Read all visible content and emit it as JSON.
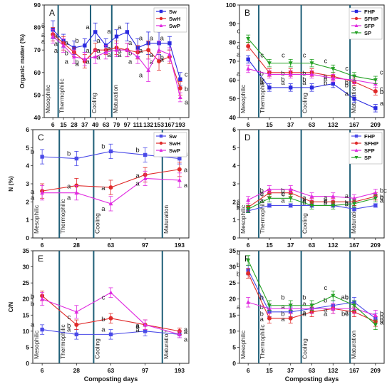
{
  "chart_data": [
    {
      "panel": "A",
      "type": "line",
      "ylabel": "Organic matter (%)",
      "xlabel": "",
      "ylim": [
        40,
        90
      ],
      "yticks": [
        40,
        50,
        60,
        70,
        80,
        90
      ],
      "x": [
        "6",
        "15",
        "28",
        "37",
        "49",
        "63",
        "79",
        "97",
        "111",
        "132",
        "153",
        "167",
        "193"
      ],
      "phases": [
        {
          "label": "Mesophilic",
          "before": 1,
          "line": 1.5
        },
        {
          "label": "Thermophilic",
          "before": 4,
          "line": 4.55
        },
        {
          "label": "Cooling",
          "before": 6,
          "line": 6.55
        },
        {
          "label": "Maturation",
          "before": 13,
          "line": null
        }
      ],
      "legend": "top-right",
      "series": [
        {
          "name": "Sw",
          "color": "#2a2ae0",
          "marker": "square",
          "values": [
            79,
            74,
            71,
            72,
            78,
            72,
            76,
            78,
            71,
            73,
            73,
            73,
            57
          ],
          "err": [
            4,
            3,
            3,
            3,
            4,
            3,
            3,
            4,
            4,
            5,
            5,
            3,
            3
          ],
          "labels": [
            "a",
            "a",
            "a",
            "b",
            "a",
            "a",
            "a",
            "a",
            "a",
            "a",
            "a",
            "a",
            "c"
          ]
        },
        {
          "name": "SwH",
          "color": "#e02a2a",
          "marker": "circle",
          "values": [
            77,
            73,
            69,
            65,
            70,
            70,
            71,
            70,
            69,
            70,
            65,
            67,
            53
          ],
          "err": [
            3,
            3,
            2,
            3,
            3,
            2,
            3,
            3,
            3,
            4,
            4,
            3,
            3
          ],
          "labels": [
            "a",
            "a",
            "b",
            "b",
            "a",
            "a",
            "a",
            "a",
            "b",
            "a",
            "a",
            "b",
            "b"
          ]
        },
        {
          "name": "SwP",
          "color": "#e02ae0",
          "marker": "triangle",
          "values": [
            76,
            72,
            67,
            66,
            67,
            69,
            70,
            70,
            67,
            61,
            70,
            68,
            49
          ],
          "err": [
            3,
            3,
            3,
            3,
            3,
            3,
            3,
            3,
            3,
            5,
            4,
            3,
            2
          ],
          "labels": [
            "a",
            "a",
            "a",
            "a",
            "a",
            "a",
            "a",
            "a",
            "a",
            "a",
            "a",
            "a",
            "a"
          ]
        }
      ]
    },
    {
      "panel": "B",
      "type": "line",
      "ylabel": "",
      "xlabel": "",
      "ylim": [
        40,
        100
      ],
      "yticks": [
        40,
        50,
        60,
        70,
        80,
        90,
        100
      ],
      "x": [
        "6",
        "15",
        "37",
        "63",
        "132",
        "167",
        "209"
      ],
      "phases": [
        {
          "label": "Mesophilic",
          "before": 1,
          "line": 1.5
        },
        {
          "label": "Thermophilic",
          "before": 3,
          "line": 3.5
        },
        {
          "label": "Cooling",
          "before": 5,
          "line": 5.8
        },
        {
          "label": "Maturation",
          "before": 7,
          "line": null
        }
      ],
      "legend": "top-right",
      "series": [
        {
          "name": "FHP",
          "color": "#2a2ae0",
          "marker": "square",
          "values": [
            71,
            56,
            56,
            56,
            58,
            50,
            45
          ],
          "err": [
            2,
            2,
            2,
            2,
            2,
            2,
            2
          ],
          "labels": [
            "a",
            "a",
            "a",
            "a",
            "a",
            "a",
            "a"
          ]
        },
        {
          "name": "SFHP",
          "color": "#e02a2a",
          "marker": "circle",
          "values": [
            78,
            64,
            64,
            64,
            62,
            59,
            54
          ],
          "err": [
            2,
            2,
            2,
            2,
            2,
            2,
            2
          ],
          "labels": [
            "c",
            "b",
            "b",
            "b",
            "b",
            "b",
            "b"
          ]
        },
        {
          "name": "SFP",
          "color": "#e02ae0",
          "marker": "triangle",
          "values": [
            66,
            63,
            63,
            63,
            61,
            60,
            58
          ],
          "err": [
            2,
            2,
            2,
            2,
            2,
            2,
            2
          ],
          "labels": [
            "a",
            "b",
            "b",
            "b",
            "b",
            "b",
            "c"
          ]
        },
        {
          "name": "SP",
          "color": "#22a022",
          "marker": "triangle-down",
          "values": [
            82,
            69,
            69,
            69,
            66,
            62,
            60
          ],
          "err": [
            2,
            2,
            2,
            2,
            2,
            2,
            2
          ],
          "labels": [
            "c",
            "c",
            "c",
            "c",
            "c",
            "c",
            "c"
          ]
        }
      ]
    },
    {
      "panel": "C",
      "type": "line",
      "ylabel": "N (%)",
      "xlabel": "",
      "ylim": [
        0,
        6
      ],
      "yticks": [
        0,
        1,
        2,
        3,
        4,
        5,
        6
      ],
      "x": [
        "6",
        "28",
        "63",
        "97",
        "193"
      ],
      "phases": [
        {
          "label": "Mesophilic",
          "before": 1,
          "line": 1.5
        },
        {
          "label": "Thermophilic",
          "before": 2,
          "line": 2.5
        },
        {
          "label": "Cooling",
          "before": 3,
          "line": 4.5
        },
        {
          "label": "Maturation",
          "before": 5,
          "line": null
        }
      ],
      "legend": "top-right",
      "series": [
        {
          "name": "Sw",
          "color": "#4a4ae8",
          "marker": "square",
          "values": [
            4.5,
            4.4,
            4.8,
            4.6,
            4.4
          ],
          "err": [
            0.4,
            0.4,
            0.4,
            0.4,
            0.3
          ],
          "labels": [
            "b",
            "b",
            "b",
            "b",
            "a"
          ]
        },
        {
          "name": "SwH",
          "color": "#e02a2a",
          "marker": "circle",
          "values": [
            2.6,
            2.9,
            2.8,
            3.5,
            3.8
          ],
          "err": [
            0.4,
            0.4,
            0.4,
            0.4,
            0.4
          ],
          "labels": [
            "a",
            "a",
            "a",
            "a",
            "a"
          ]
        },
        {
          "name": "SwP",
          "color": "#e02ae0",
          "marker": "triangle",
          "values": [
            2.5,
            2.5,
            1.9,
            3.3,
            3.2
          ],
          "err": [
            0.4,
            0.4,
            0.4,
            0.4,
            0.4
          ],
          "labels": [
            "a",
            "a",
            "a",
            "a",
            "a"
          ]
        }
      ]
    },
    {
      "panel": "D",
      "type": "line",
      "ylabel": "",
      "xlabel": "",
      "ylim": [
        0,
        6
      ],
      "yticks": [
        0,
        1,
        2,
        3,
        4,
        5,
        6
      ],
      "x": [
        "6",
        "15",
        "37",
        "63",
        "132",
        "167",
        "209"
      ],
      "phases": [
        {
          "label": "Mesophilic",
          "before": 1,
          "line": 1.5
        },
        {
          "label": "Thermophilic",
          "before": 3,
          "line": 3.5
        },
        {
          "label": "Cooling",
          "before": 5,
          "line": 5.8
        },
        {
          "label": "Maturation",
          "before": 7,
          "line": null
        }
      ],
      "legend": "top-right",
      "series": [
        {
          "name": "FHP",
          "color": "#4a4ae8",
          "marker": "square",
          "values": [
            1.5,
            1.8,
            1.8,
            1.8,
            1.8,
            1.6,
            1.8
          ],
          "err": [
            0.1,
            0.1,
            0.1,
            0.1,
            0.1,
            0.1,
            0.1
          ],
          "labels": [
            "a",
            "a",
            "a",
            "a",
            "a",
            "a",
            "a"
          ]
        },
        {
          "name": "SFHP",
          "color": "#e02a2a",
          "marker": "circle",
          "values": [
            1.7,
            2.5,
            2.5,
            2.0,
            2.0,
            2.0,
            2.3
          ],
          "err": [
            0.2,
            0.2,
            0.2,
            0.2,
            0.2,
            0.2,
            0.2
          ],
          "labels": [
            "a",
            "b",
            "b",
            "b",
            "b",
            "b",
            "b"
          ]
        },
        {
          "name": "SFP",
          "color": "#e02ae0",
          "marker": "triangle",
          "values": [
            2.1,
            2.7,
            2.7,
            2.3,
            2.3,
            2.2,
            2.5
          ],
          "err": [
            0.2,
            0.2,
            0.2,
            0.2,
            0.2,
            0.2,
            0.2
          ],
          "labels": [
            "b",
            "c",
            "c",
            "c",
            "c",
            "b",
            "c"
          ]
        },
        {
          "name": "SP",
          "color": "#22a022",
          "marker": "triangle-down",
          "values": [
            1.6,
            2.2,
            2.2,
            1.8,
            1.8,
            1.9,
            2.2
          ],
          "err": [
            0.2,
            0.2,
            0.2,
            0.2,
            0.2,
            0.2,
            0.2
          ],
          "labels": [
            "a",
            "b",
            "b",
            "a",
            "a",
            "a",
            "bc"
          ]
        }
      ]
    },
    {
      "panel": "E",
      "type": "line",
      "ylabel": "C/N",
      "xlabel": "Composting days",
      "ylim": [
        0,
        35
      ],
      "yticks": [
        0,
        5,
        10,
        15,
        20,
        25,
        30,
        35
      ],
      "x": [
        "6",
        "28",
        "63",
        "97",
        "193"
      ],
      "phases": [
        {
          "label": "Mesophilic",
          "before": 1,
          "line": 1.5
        },
        {
          "label": "Thermophilic",
          "before": 2,
          "line": 2.5
        },
        {
          "label": "Cooling",
          "before": 3,
          "line": 4.5
        },
        {
          "label": "Maturation",
          "before": 5,
          "line": null
        }
      ],
      "legend": "",
      "series": [
        {
          "name": "",
          "color": "#4a4ae8",
          "marker": "square",
          "values": [
            10.5,
            9,
            9,
            10,
            9
          ],
          "err": [
            1.5,
            1.5,
            1.5,
            1.5,
            1
          ],
          "labels": [
            "a",
            "a",
            "a",
            "a",
            "a"
          ]
        },
        {
          "name": "",
          "color": "#e02a2a",
          "marker": "circle",
          "values": [
            21,
            12,
            14,
            12,
            10
          ],
          "err": [
            1.5,
            1.5,
            1.5,
            1.5,
            1
          ],
          "labels": [
            "b",
            "b",
            "b",
            "a",
            "a"
          ]
        },
        {
          "name": "",
          "color": "#e02ae0",
          "marker": "triangle",
          "values": [
            20,
            16,
            22,
            12,
            9
          ],
          "err": [
            2,
            2,
            1.5,
            1.5,
            1
          ],
          "labels": [
            "b",
            "c",
            "c",
            "a",
            "a"
          ]
        }
      ]
    },
    {
      "panel": "F",
      "type": "line",
      "ylabel": "",
      "xlabel": "Composting days",
      "ylim": [
        0,
        35
      ],
      "yticks": [
        0,
        5,
        10,
        15,
        20,
        25,
        30,
        35
      ],
      "x": [
        "6",
        "15",
        "37",
        "63",
        "132",
        "167",
        "209"
      ],
      "phases": [
        {
          "label": "Mesophilic",
          "before": 1,
          "line": 1.5
        },
        {
          "label": "Thermophilic",
          "before": 3,
          "line": 3.5
        },
        {
          "label": "Cooling",
          "before": 5,
          "line": 5.8
        },
        {
          "label": "Maturation",
          "before": 7,
          "line": null
        }
      ],
      "legend": "",
      "series": [
        {
          "name": "",
          "color": "#4a4ae8",
          "marker": "square",
          "values": [
            29,
            16,
            16,
            17,
            18,
            19,
            14
          ],
          "err": [
            1.5,
            1.5,
            1.5,
            1.5,
            1.5,
            1.5,
            1.5
          ],
          "labels": [
            "b",
            "b",
            "a",
            "a",
            "b",
            "ab",
            "b"
          ]
        },
        {
          "name": "",
          "color": "#e02a2a",
          "marker": "circle",
          "values": [
            28,
            14,
            14,
            16,
            17,
            16,
            13
          ],
          "err": [
            1.5,
            1.5,
            1.5,
            1.5,
            1.5,
            1.5,
            1.5
          ],
          "labels": [
            "b",
            "a",
            "a",
            "a",
            "a",
            "a",
            "a"
          ]
        },
        {
          "name": "",
          "color": "#e02ae0",
          "marker": "triangle",
          "values": [
            19,
            17,
            17,
            17,
            17,
            17,
            15
          ],
          "err": [
            1.5,
            1.5,
            1.5,
            1.5,
            1.5,
            1.5,
            1.5
          ],
          "labels": [
            "a",
            "b",
            "b",
            "a",
            "a",
            "bc",
            "b"
          ]
        },
        {
          "name": "",
          "color": "#22a022",
          "marker": "triangle-down",
          "values": [
            32,
            18,
            18,
            18,
            21,
            18,
            12
          ],
          "err": [
            1.5,
            1.5,
            1.5,
            1.5,
            1.5,
            1.5,
            1.5
          ],
          "labels": [
            "b",
            "b",
            "b",
            "b",
            "c",
            "c",
            "b"
          ]
        }
      ]
    }
  ]
}
